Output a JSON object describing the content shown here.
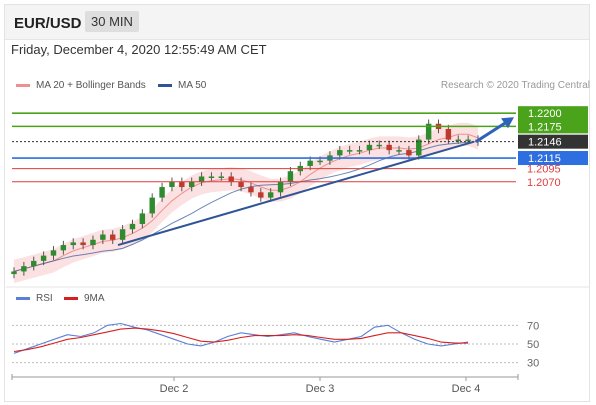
{
  "header": {
    "symbol": "EUR/USD",
    "timeframe": "30 MIN"
  },
  "subtitle": "Friday, December 4, 2020 12:55:49 AM CET",
  "legend": {
    "ma20": {
      "label": "MA 20 + Bollinger Bands",
      "color": "#f08f8f"
    },
    "ma50": {
      "label": "MA 50",
      "color": "#2f5597"
    }
  },
  "credit": "Research © 2020 Trading Central",
  "rsi_legend": {
    "rsi": {
      "label": "RSI",
      "color": "#5b7fd6"
    },
    "ma9": {
      "label": "9MA",
      "color": "#d62020"
    }
  },
  "chart_data": [
    {
      "type": "candlestick",
      "title": "EUR/USD",
      "timeframe": "30 MIN",
      "x_tick_labels": [
        "Dec 2",
        "Dec 3",
        "Dec 4"
      ],
      "levels": [
        {
          "label": "1.2200",
          "value": 1.22,
          "color": "#4aa31a",
          "style": "badge"
        },
        {
          "label": "1.2175",
          "value": 1.2175,
          "color": "#4aa31a",
          "style": "badge"
        },
        {
          "label": "1.2146",
          "value": 1.2146,
          "color": "#333333",
          "style": "badge"
        },
        {
          "label": "1.2115",
          "value": 1.2115,
          "color": "#2d6ee0",
          "style": "badge"
        },
        {
          "label": "1.2095",
          "value": 1.2095,
          "color": "#e03c3c",
          "style": "text"
        },
        {
          "label": "1.2070",
          "value": 1.207,
          "color": "#e03c3c",
          "style": "text"
        }
      ],
      "series_close": [
        1.19,
        1.191,
        1.192,
        1.193,
        1.194,
        1.195,
        1.1955,
        1.195,
        1.196,
        1.197,
        1.196,
        1.198,
        1.199,
        1.201,
        1.204,
        1.206,
        1.207,
        1.206,
        1.207,
        1.208,
        1.208,
        1.208,
        1.207,
        1.206,
        1.205,
        1.204,
        1.205,
        1.207,
        1.209,
        1.21,
        1.211,
        1.211,
        1.212,
        1.213,
        1.213,
        1.213,
        1.214,
        1.214,
        1.213,
        1.213,
        1.212,
        1.215,
        1.218,
        1.217,
        1.215,
        1.215,
        1.215,
        1.2146
      ],
      "trendline": {
        "from": 1.195,
        "to": 1.2146
      },
      "forecast_target": 1.22
    },
    {
      "type": "line",
      "title": "RSI",
      "series": [
        {
          "name": "RSI",
          "values": [
            40,
            45,
            50,
            55,
            60,
            58,
            62,
            70,
            72,
            68,
            65,
            60,
            55,
            50,
            48,
            52,
            58,
            62,
            60,
            58,
            60,
            62,
            58,
            55,
            52,
            55,
            58,
            68,
            70,
            62,
            55,
            50,
            48,
            50,
            52
          ]
        },
        {
          "name": "9MA",
          "values": [
            42,
            44,
            47,
            51,
            55,
            57,
            60,
            63,
            66,
            67,
            66,
            64,
            61,
            57,
            53,
            52,
            54,
            57,
            59,
            59,
            59,
            60,
            59,
            57,
            55,
            55,
            56,
            59,
            62,
            62,
            59,
            56,
            52,
            51,
            51
          ]
        }
      ],
      "yticks": [
        70,
        50,
        30
      ],
      "ylim": [
        20,
        80
      ]
    }
  ]
}
